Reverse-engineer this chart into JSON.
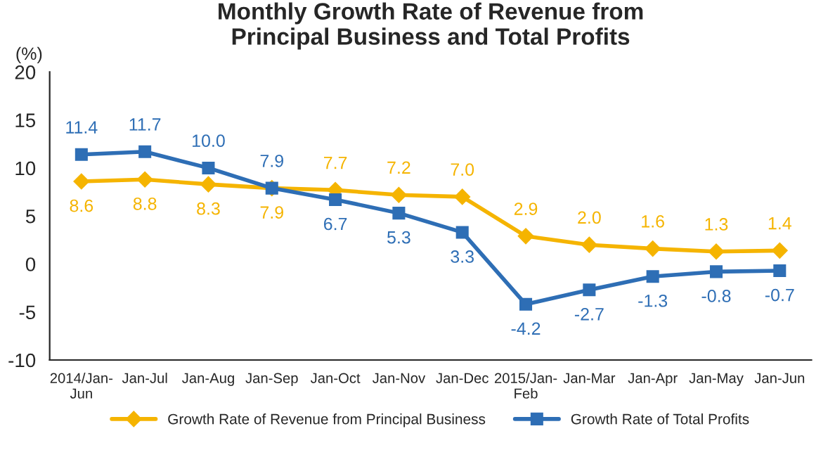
{
  "chart_data": {
    "type": "line",
    "title": "Monthly Growth Rate of Revenue from\nPrincipal Business and Total Profits",
    "ylabel": "(%)",
    "categories": [
      "2014/Jan-\nJun",
      "Jan-Jul",
      "Jan-Aug",
      "Jan-Sep",
      "Jan-Oct",
      "Jan-Nov",
      "Jan-Dec",
      "2015/Jan-\nFeb",
      "Jan-Mar",
      "Jan-Apr",
      "Jan-May",
      "Jan-Jun"
    ],
    "series": [
      {
        "name": "Growth Rate of Revenue from Principal Business",
        "color": "#f5b400",
        "marker": "diamond",
        "values": [
          8.6,
          8.8,
          8.3,
          7.9,
          7.7,
          7.2,
          7.0,
          2.9,
          2.0,
          1.6,
          1.3,
          1.4
        ],
        "value_labels": [
          "8.6",
          "8.8",
          "8.3",
          "7.9",
          "7.7",
          "7.2",
          "7.0",
          "2.9",
          "2.0",
          "1.6",
          "1.3",
          "1.4"
        ]
      },
      {
        "name": "Growth Rate of Total Profits",
        "color": "#2e6eb5",
        "marker": "square",
        "values": [
          11.4,
          11.7,
          10.0,
          7.9,
          6.7,
          5.3,
          3.3,
          -4.2,
          -2.7,
          -1.3,
          -0.8,
          -0.7
        ],
        "value_labels": [
          "11.4",
          "11.7",
          "10.0",
          "7.9",
          "6.7",
          "5.3",
          "3.3",
          "-4.2",
          "-2.7",
          "-1.3",
          "-0.8",
          "-0.7"
        ]
      }
    ],
    "ylim": [
      -10,
      20
    ],
    "yticks": [
      -10,
      -5,
      0,
      5,
      10,
      15,
      20
    ],
    "grid": false,
    "legend": "bottom",
    "line_style": "solid"
  }
}
